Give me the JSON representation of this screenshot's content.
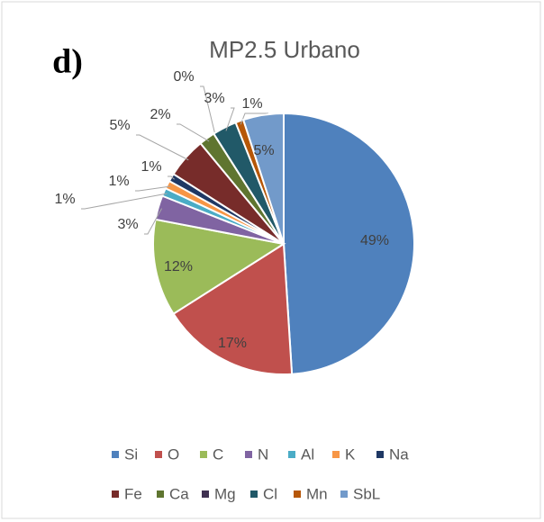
{
  "chart_data": {
    "type": "pie",
    "panel_label": "d)",
    "title": "MP2.5 Urbano",
    "categories": [
      "Si",
      "O",
      "C",
      "N",
      "Al",
      "K",
      "Na",
      "Fe",
      "Ca",
      "Mg",
      "Cl",
      "Mn",
      "SbL"
    ],
    "values": [
      49,
      17,
      12,
      3,
      1,
      1,
      1,
      5,
      2,
      0,
      3,
      1,
      5
    ],
    "value_labels": [
      "49%",
      "17%",
      "12%",
      "3%",
      "1%",
      "1%",
      "1%",
      "5%",
      "2%",
      "0%",
      "3%",
      "1%",
      "5%"
    ],
    "colors": [
      "#4f81bd",
      "#c0504d",
      "#9bbb59",
      "#8064a2",
      "#4bacc6",
      "#f79646",
      "#1f3864",
      "#772c2a",
      "#5f7530",
      "#3f3151",
      "#215968",
      "#b65708",
      "#729aca"
    ],
    "legend": "bottom"
  }
}
